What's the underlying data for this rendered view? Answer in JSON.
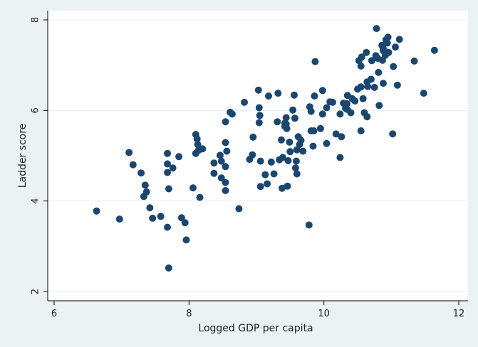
{
  "chart_data": {
    "type": "scatter",
    "title": "",
    "xlabel": "Logged GDP per capita",
    "ylabel": "Ladder score",
    "xlim": [
      6,
      12
    ],
    "ylim": [
      2,
      8
    ],
    "xticks": [
      6,
      8,
      10,
      12
    ],
    "yticks": [
      2,
      4,
      6,
      8
    ],
    "xtick_labels": [
      "6",
      "8",
      "10",
      "12"
    ],
    "ytick_labels": [
      "2",
      "4",
      "6",
      "8"
    ],
    "grid": true,
    "legend": "none",
    "colors": {
      "marker": "#1a476f",
      "plot_background": "#ffffff",
      "figure_background": "#eaf2f3",
      "grid": "#e8eeef",
      "axis": "#000000"
    },
    "points": [
      [
        6.63,
        3.78
      ],
      [
        6.97,
        3.6
      ],
      [
        7.11,
        5.07
      ],
      [
        7.17,
        4.8
      ],
      [
        7.29,
        4.62
      ],
      [
        7.33,
        4.1
      ],
      [
        7.35,
        4.35
      ],
      [
        7.37,
        4.2
      ],
      [
        7.42,
        3.85
      ],
      [
        7.46,
        3.62
      ],
      [
        7.58,
        3.66
      ],
      [
        7.68,
        5.05
      ],
      [
        7.68,
        4.82
      ],
      [
        7.68,
        4.63
      ],
      [
        7.68,
        3.42
      ],
      [
        7.7,
        2.52
      ],
      [
        7.7,
        4.27
      ],
      [
        7.76,
        4.73
      ],
      [
        7.85,
        4.98
      ],
      [
        7.89,
        3.63
      ],
      [
        7.94,
        3.52
      ],
      [
        7.96,
        3.14
      ],
      [
        8.06,
        4.29
      ],
      [
        8.1,
        5.47
      ],
      [
        8.1,
        5.05
      ],
      [
        8.12,
        5.37
      ],
      [
        8.13,
        5.25
      ],
      [
        8.14,
        5.12
      ],
      [
        8.16,
        4.08
      ],
      [
        8.2,
        5.15
      ],
      [
        8.37,
        4.84
      ],
      [
        8.37,
        4.61
      ],
      [
        8.46,
        5.01
      ],
      [
        8.48,
        4.88
      ],
      [
        8.48,
        4.51
      ],
      [
        8.54,
        4.76
      ],
      [
        8.54,
        4.41
      ],
      [
        8.54,
        4.23
      ],
      [
        8.54,
        5.75
      ],
      [
        8.54,
        5.29
      ],
      [
        8.56,
        5.1
      ],
      [
        8.61,
        5.96
      ],
      [
        8.64,
        5.92
      ],
      [
        8.74,
        3.83
      ],
      [
        8.82,
        6.18
      ],
      [
        8.9,
        4.92
      ],
      [
        8.94,
        5.02
      ],
      [
        8.95,
        5.41
      ],
      [
        9.03,
        6.45
      ],
      [
        9.04,
        6.06
      ],
      [
        9.04,
        5.73
      ],
      [
        9.05,
        5.89
      ],
      [
        9.06,
        4.32
      ],
      [
        9.06,
        4.88
      ],
      [
        9.13,
        4.58
      ],
      [
        9.16,
        4.38
      ],
      [
        9.18,
        6.32
      ],
      [
        9.22,
        4.86
      ],
      [
        9.26,
        4.6
      ],
      [
        9.31,
        5.75
      ],
      [
        9.32,
        6.38
      ],
      [
        9.34,
        4.91
      ],
      [
        9.37,
        5.35
      ],
      [
        9.38,
        4.28
      ],
      [
        9.39,
        4.96
      ],
      [
        9.42,
        5.72
      ],
      [
        9.42,
        5.65
      ],
      [
        9.44,
        5.84
      ],
      [
        9.44,
        5.7
      ],
      [
        9.45,
        5.6
      ],
      [
        9.46,
        4.33
      ],
      [
        9.47,
        4.89
      ],
      [
        9.49,
        5.3
      ],
      [
        9.5,
        5.09
      ],
      [
        9.54,
        6.01
      ],
      [
        9.56,
        6.34
      ],
      [
        9.57,
        5.83
      ],
      [
        9.58,
        4.73
      ],
      [
        9.59,
        4.88
      ],
      [
        9.6,
        4.6
      ],
      [
        9.6,
        5.13
      ],
      [
        9.62,
        5.42
      ],
      [
        9.64,
        5.25
      ],
      [
        9.66,
        5.34
      ],
      [
        9.69,
        5.1
      ],
      [
        9.78,
        3.47
      ],
      [
        9.79,
        6.08
      ],
      [
        9.81,
        5.98
      ],
      [
        9.81,
        5.55
      ],
      [
        9.84,
        5.21
      ],
      [
        9.85,
        5.55
      ],
      [
        9.86,
        6.32
      ],
      [
        9.87,
        7.08
      ],
      [
        9.95,
        5.6
      ],
      [
        9.98,
        6.44
      ],
      [
        9.98,
        5.92
      ],
      [
        10.04,
        6.06
      ],
      [
        10.04,
        5.27
      ],
      [
        10.09,
        6.19
      ],
      [
        10.13,
        6.18
      ],
      [
        10.18,
        5.48
      ],
      [
        10.24,
        5.92
      ],
      [
        10.24,
        4.96
      ],
      [
        10.26,
        5.42
      ],
      [
        10.29,
        6.16
      ],
      [
        10.32,
        6.05
      ],
      [
        10.34,
        6.15
      ],
      [
        10.35,
        6.33
      ],
      [
        10.35,
        6.02
      ],
      [
        10.4,
        5.95
      ],
      [
        10.42,
        6.26
      ],
      [
        10.46,
        6.21
      ],
      [
        10.5,
        6.47
      ],
      [
        10.52,
        7.1
      ],
      [
        10.55,
        6.98
      ],
      [
        10.55,
        6.52
      ],
      [
        10.55,
        5.55
      ],
      [
        10.56,
        7.18
      ],
      [
        10.58,
        6.26
      ],
      [
        10.6,
        5.95
      ],
      [
        10.63,
        7.28
      ],
      [
        10.64,
        5.86
      ],
      [
        10.64,
        6.63
      ],
      [
        10.65,
        6.53
      ],
      [
        10.7,
        6.69
      ],
      [
        10.71,
        7.1
      ],
      [
        10.75,
        6.51
      ],
      [
        10.77,
        7.21
      ],
      [
        10.78,
        7.81
      ],
      [
        10.79,
        7.16
      ],
      [
        10.8,
        7.15
      ],
      [
        10.81,
        6.84
      ],
      [
        10.82,
        6.11
      ],
      [
        10.86,
        7.44
      ],
      [
        10.87,
        7.11
      ],
      [
        10.88,
        7.32
      ],
      [
        10.88,
        7.37
      ],
      [
        10.88,
        6.6
      ],
      [
        10.91,
        7.22
      ],
      [
        10.92,
        7.56
      ],
      [
        10.94,
        7.49
      ],
      [
        10.95,
        7.62
      ],
      [
        10.96,
        7.28
      ],
      [
        11.02,
        5.48
      ],
      [
        11.03,
        6.97
      ],
      [
        11.06,
        7.4
      ],
      [
        11.09,
        6.56
      ],
      [
        11.12,
        7.57
      ],
      [
        11.34,
        7.09
      ],
      [
        11.48,
        6.38
      ],
      [
        11.64,
        7.33
      ]
    ]
  }
}
